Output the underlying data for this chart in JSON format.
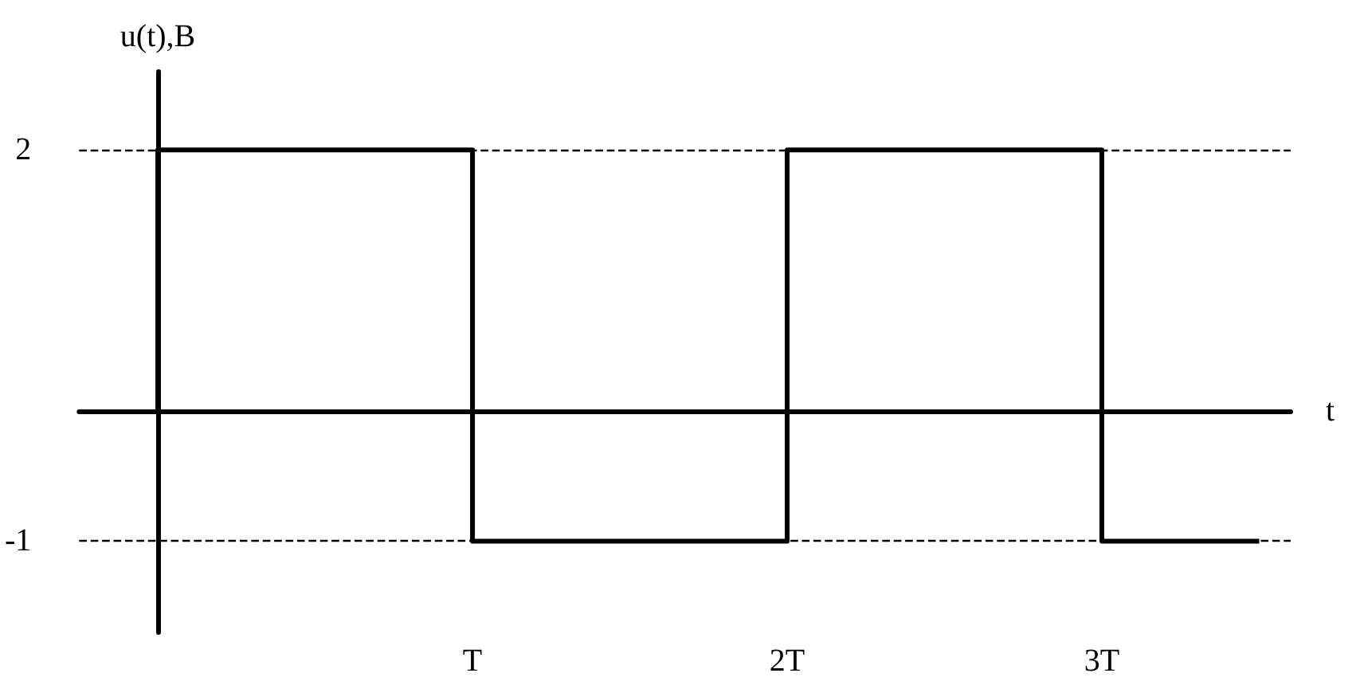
{
  "chart_data": {
    "type": "step",
    "xlabel": "t",
    "ylabel": "u(t),B",
    "x": [
      0,
      0,
      1,
      2,
      3,
      3.5
    ],
    "series": [
      {
        "color": "#000000",
        "values": [
          0,
          2,
          -1,
          2,
          -1,
          -1
        ]
      }
    ],
    "xlim": [
      -0.25,
      3.6
    ],
    "xticks": [
      {
        "value": 1,
        "label": "T"
      },
      {
        "value": 2,
        "label": "2T"
      },
      {
        "value": 3,
        "label": "3T"
      }
    ],
    "ylim": [
      -1.7,
      2.6
    ],
    "yticks": [
      2,
      -1
    ],
    "ref_lines": [
      {
        "axis": "y",
        "value": 2,
        "line_style": "dashed",
        "color": "#000000"
      },
      {
        "axis": "y",
        "value": -1,
        "line_style": "dashed",
        "color": "#000000"
      }
    ],
    "marker": "none",
    "grid": false
  }
}
